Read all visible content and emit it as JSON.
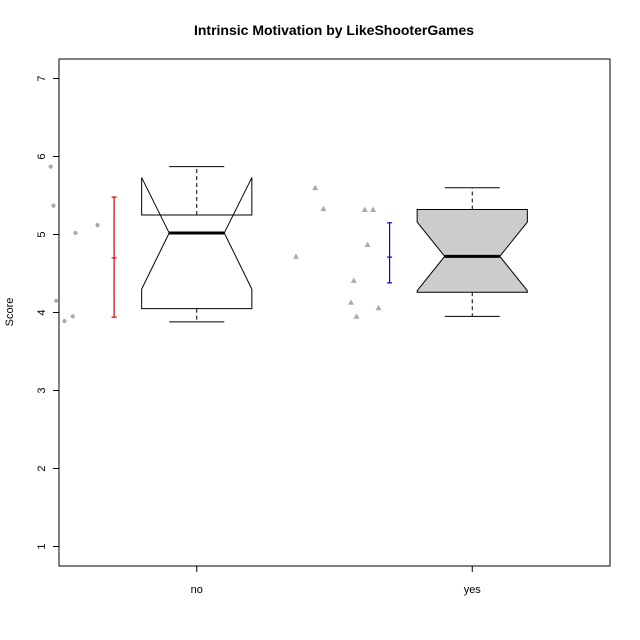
{
  "chart_data": {
    "type": "boxplot",
    "title": "Intrinsic Motivation by LikeShooterGames",
    "xlabel": "",
    "ylabel": "Score",
    "ylim": [
      0.75,
      7.25
    ],
    "yticks": [
      1,
      2,
      3,
      4,
      5,
      6,
      7
    ],
    "categories": [
      "no",
      "yes"
    ],
    "notched": true,
    "boxes": [
      {
        "category": "no",
        "fill": "#ffffff",
        "min": 3.88,
        "q1": 4.05,
        "median": 5.02,
        "q3": 5.25,
        "max": 5.87,
        "notch_low": 4.3,
        "notch_high": 5.73
      },
      {
        "category": "yes",
        "fill": "#cccccc",
        "min": 3.95,
        "q1": 4.26,
        "median": 4.72,
        "q3": 5.32,
        "max": 5.6,
        "notch_low": 4.28,
        "notch_high": 5.16
      }
    ],
    "error_bars": [
      {
        "category": "no",
        "color": "#dd0000",
        "mean": 4.7,
        "low": 3.94,
        "high": 5.48
      },
      {
        "category": "yes",
        "color": "#0000cc",
        "mean": 4.71,
        "low": 4.38,
        "high": 5.15
      }
    ],
    "points": [
      {
        "category": "no",
        "shape": "circle",
        "color": "#aaaaaa",
        "offsets": [
          -0.53,
          -0.52,
          -0.51,
          -0.48,
          -0.45,
          -0.44,
          -0.36
        ],
        "values": [
          5.87,
          5.37,
          4.15,
          3.89,
          3.95,
          5.02,
          5.12
        ]
      },
      {
        "category": "yes",
        "shape": "triangle",
        "color": "#aaaaaa",
        "offsets": [
          -0.64,
          -0.57,
          -0.54,
          -0.44,
          -0.43,
          -0.42,
          -0.39,
          -0.38,
          -0.36,
          -0.34
        ],
        "values": [
          4.72,
          5.6,
          5.33,
          4.13,
          4.41,
          3.95,
          5.32,
          4.87,
          5.32,
          4.06
        ]
      }
    ]
  }
}
